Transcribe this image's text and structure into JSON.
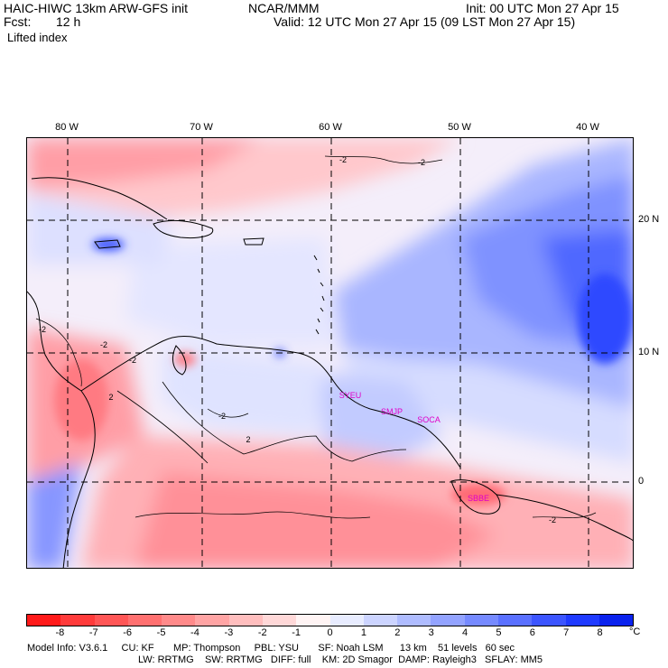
{
  "header": {
    "model_title": "HAIC-HIWC 13km ARW-GFS init",
    "institution": "NCAR/MMM",
    "init_time": "Init: 00 UTC Mon 27 Apr 15",
    "forecast_label": "Fcst:",
    "forecast_hours": "12 h",
    "valid_time": "Valid: 12 UTC Mon 27 Apr 15 (09 LST Mon 27 Apr 15)",
    "field_name": "Lifted index"
  },
  "map": {
    "lon_labels": [
      "80 W",
      "70 W",
      "60 W",
      "50 W",
      "40 W"
    ],
    "lat_labels": [
      "20 N",
      "10 N",
      "0"
    ],
    "stations": [
      "SYEU",
      "SMJP",
      "SOCA",
      "SBBE"
    ],
    "contour_labels": [
      "-2",
      "-2",
      "-2",
      "-2",
      "-2",
      "-2",
      "-2",
      "2",
      "2"
    ]
  },
  "colorbar": {
    "labels": [
      "-8",
      "-7",
      "-6",
      "-5",
      "-4",
      "-3",
      "-2",
      "-1",
      "0",
      "1",
      "2",
      "3",
      "4",
      "5",
      "6",
      "7",
      "8"
    ],
    "unit": "°C",
    "colors": [
      "#ff1a1a",
      "#ff3b3b",
      "#ff5656",
      "#ff7070",
      "#ff8a8a",
      "#ffa4a4",
      "#ffbebe",
      "#ffd8d8",
      "#fff4f4",
      "#e8ecff",
      "#ccd4ff",
      "#afbcff",
      "#93a3ff",
      "#768aff",
      "#5a70ff",
      "#3c55ff",
      "#1f3aff",
      "#0a22ee"
    ]
  },
  "footer": {
    "line1": "Model Info: V3.6.1     CU: KF       MP: Thompson     PBL: YSU       SF: Noah LSM      13 km    51 levels   60 sec",
    "line2": "LW: RRTMG    SW: RRTMG   DIFF: full    KM: 2D Smagor  DAMP: Rayleigh3   SFLAY: MM5"
  }
}
